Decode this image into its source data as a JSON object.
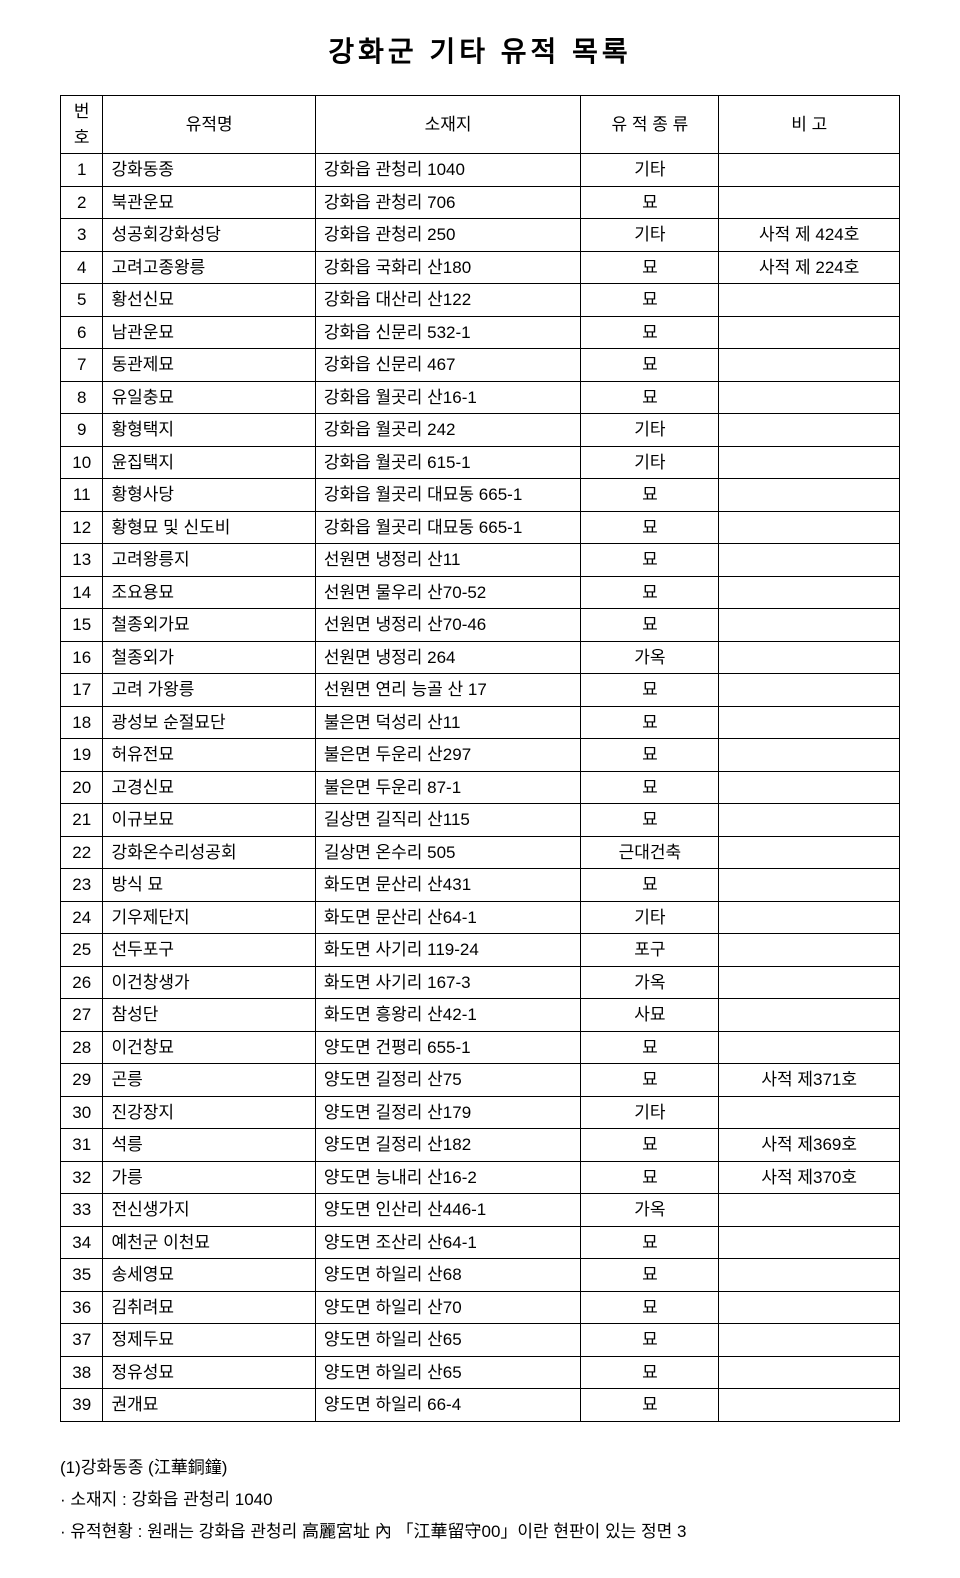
{
  "title": "강화군 기타 유적 목록",
  "columns": [
    "번\n호",
    "유적명",
    "소재지",
    "유 적 종 류",
    "비 고"
  ],
  "rows": [
    [
      "1",
      "강화동종",
      "강화읍 관청리 1040",
      "기타",
      ""
    ],
    [
      "2",
      "북관운묘",
      "강화읍 관청리 706",
      "묘",
      ""
    ],
    [
      "3",
      "성공회강화성당",
      "강화읍 관청리 250",
      "기타",
      "사적 제 424호"
    ],
    [
      "4",
      "고려고종왕릉",
      "강화읍 국화리 산180",
      "묘",
      "사적 제 224호"
    ],
    [
      "5",
      "황선신묘",
      "강화읍 대산리 산122",
      "묘",
      ""
    ],
    [
      "6",
      "남관운묘",
      "강화읍 신문리 532-1",
      "묘",
      ""
    ],
    [
      "7",
      "동관제묘",
      "강화읍 신문리 467",
      "묘",
      ""
    ],
    [
      "8",
      "유일충묘",
      "강화읍 월곳리 산16-1",
      "묘",
      ""
    ],
    [
      "9",
      "황형택지",
      "강화읍 월곳리 242",
      "기타",
      ""
    ],
    [
      "10",
      "윤집택지",
      "강화읍 월곳리 615-1",
      "기타",
      ""
    ],
    [
      "11",
      "황형사당",
      "강화읍 월곳리 대묘동 665-1",
      "묘",
      ""
    ],
    [
      "12",
      "황형묘 및 신도비",
      "강화읍 월곳리 대묘동 665-1",
      "묘",
      ""
    ],
    [
      "13",
      "고려왕릉지",
      "선원면 냉정리 산11",
      "묘",
      ""
    ],
    [
      "14",
      "조요용묘",
      "선원면 물우리 산70-52",
      "묘",
      ""
    ],
    [
      "15",
      "철종외가묘",
      "선원면 냉정리 산70-46",
      "묘",
      ""
    ],
    [
      "16",
      "철종외가",
      "선원면 냉정리 264",
      "가옥",
      ""
    ],
    [
      "17",
      "고려 가왕릉",
      "선원면 연리 능골 산 17",
      "묘",
      ""
    ],
    [
      "18",
      "광성보 순절묘단",
      "불은면 덕성리 산11",
      "묘",
      ""
    ],
    [
      "19",
      "허유전묘",
      "불은면 두운리 산297",
      "묘",
      ""
    ],
    [
      "20",
      "고경신묘",
      "불은면 두운리 87-1",
      "묘",
      ""
    ],
    [
      "21",
      "이규보묘",
      "길상면 길직리 산115",
      "묘",
      ""
    ],
    [
      "22",
      "강화온수리성공회",
      "길상면 온수리 505",
      "근대건축",
      ""
    ],
    [
      "23",
      "방식 묘",
      "화도면 문산리 산431",
      "묘",
      ""
    ],
    [
      "24",
      "기우제단지",
      "화도면 문산리 산64-1",
      "기타",
      ""
    ],
    [
      "25",
      "선두포구",
      "화도면 사기리 119-24",
      "포구",
      ""
    ],
    [
      "26",
      "이건창생가",
      "화도면 사기리 167-3",
      "가옥",
      ""
    ],
    [
      "27",
      "참성단",
      "화도면 흥왕리 산42-1",
      "사묘",
      ""
    ],
    [
      "28",
      "이건창묘",
      "양도면 건평리 655-1",
      "묘",
      ""
    ],
    [
      "29",
      "곤릉",
      "양도면 길정리 산75",
      "묘",
      "사적 제371호"
    ],
    [
      "30",
      "진강장지",
      "양도면 길정리 산179",
      "기타",
      ""
    ],
    [
      "31",
      "석릉",
      "양도면 길정리 산182",
      "묘",
      "사적 제369호"
    ],
    [
      "32",
      "가릉",
      "양도면 능내리 산16-2",
      "묘",
      "사적 제370호"
    ],
    [
      "33",
      "전신생가지",
      "양도면 인산리 산446-1",
      "가옥",
      ""
    ],
    [
      "34",
      "예천군 이천묘",
      "양도면 조산리 산64-1",
      "묘",
      ""
    ],
    [
      "35",
      "송세영묘",
      "양도면 하일리 산68",
      "묘",
      ""
    ],
    [
      "36",
      "김취려묘",
      "양도면 하일리 산70",
      "묘",
      ""
    ],
    [
      "37",
      "정제두묘",
      "양도면 하일리 산65",
      "묘",
      ""
    ],
    [
      "38",
      "정유성묘",
      "양도면 하일리 산65",
      "묘",
      ""
    ],
    [
      "39",
      "권개묘",
      "양도면 하일리 66-4",
      "묘",
      ""
    ]
  ],
  "footer": {
    "heading": "(1)강화동종 (江華銅鐘)",
    "line1": "· 소재지 : 강화읍 관청리 1040",
    "line2": "· 유적현황 : 원래는 강화읍 관청리 高麗宮址 內 「江華留守00」이란 현판이 있는 정면 3"
  }
}
